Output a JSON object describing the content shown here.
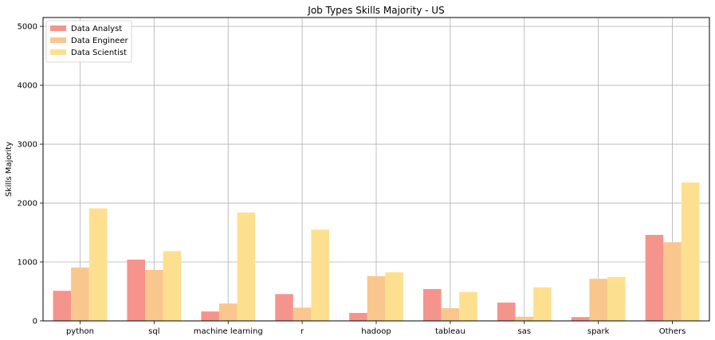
{
  "chart_data": {
    "type": "bar",
    "title": "Job Types Skills Majority - US",
    "xlabel": "",
    "ylabel": "Skills Majority",
    "ylim": [
      0,
      5150
    ],
    "yticks": [
      0,
      1000,
      2000,
      3000,
      4000,
      5000
    ],
    "grid": true,
    "legend_position": "top-left",
    "categories": [
      "python",
      "sql",
      "machine learning",
      "r",
      "hadoop",
      "tableau",
      "sas",
      "spark",
      "Others"
    ],
    "series": [
      {
        "name": "Data Analyst",
        "color": "#f5948c",
        "values": [
          510,
          1040,
          160,
          455,
          135,
          540,
          310,
          65,
          1460
        ]
      },
      {
        "name": "Data Engineer",
        "color": "#f9c68e",
        "values": [
          905,
          865,
          295,
          225,
          760,
          215,
          70,
          715,
          1335
        ]
      },
      {
        "name": "Data Scientist",
        "color": "#fde08f",
        "values": [
          1910,
          1185,
          1840,
          1550,
          825,
          490,
          570,
          745,
          2350
        ]
      }
    ]
  }
}
